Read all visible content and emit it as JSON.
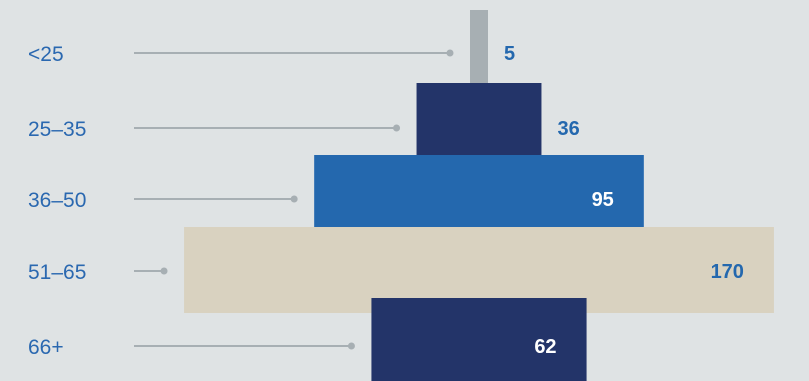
{
  "chart_data": {
    "type": "bar",
    "title": "",
    "xlabel": "",
    "ylabel": "",
    "categories": [
      "<25",
      "25–35",
      "36–50",
      "51–65",
      "66+"
    ],
    "values": [
      5,
      36,
      95,
      170,
      62
    ],
    "colors": [
      "#a7afb3",
      "#233469",
      "#2468ae",
      "#d9d2c0",
      "#233469"
    ],
    "value_label_colors": [
      "#2468ae",
      "#2468ae",
      "#ffffff",
      "#2468ae",
      "#ffffff"
    ],
    "value_label_position": [
      "outside",
      "outside",
      "inside",
      "inside",
      "inside"
    ],
    "leader_line_color": "#a7afb3",
    "category_label_color": "#2a68b0",
    "background_color": "#dfe3e4",
    "grid": false,
    "legend": "none"
  }
}
